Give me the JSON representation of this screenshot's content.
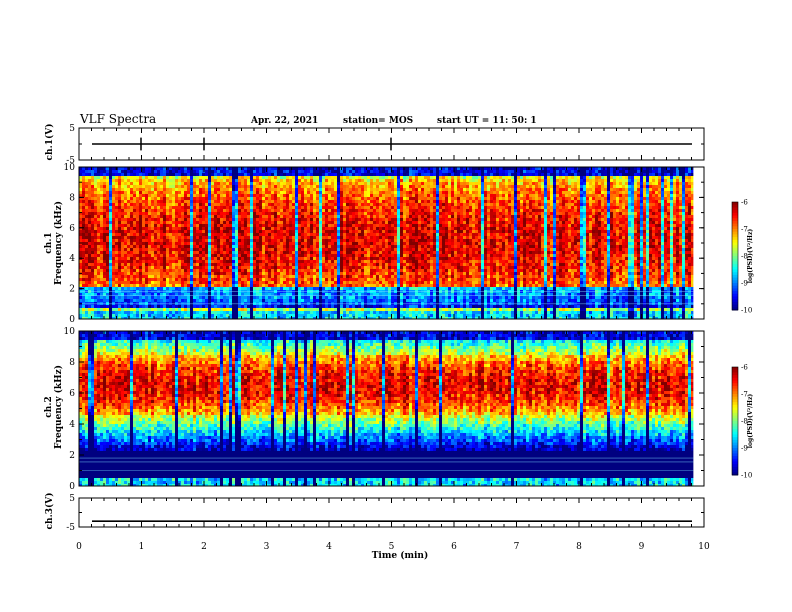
{
  "header": {
    "title": "VLF Spectra",
    "date": "Apr. 22, 2021",
    "station": "station= MOS",
    "start": "start  UT =   11: 50: 1"
  },
  "chart_data": [
    {
      "type": "line",
      "name": "ch1-waveform",
      "ylabel": "ch.1(V)",
      "ylim": [
        -5,
        5
      ],
      "yticks": [
        "5",
        "-5"
      ],
      "series": [
        {
          "values_level": 0
        }
      ],
      "xlim": [
        0,
        10
      ]
    },
    {
      "type": "heatmap",
      "name": "ch1-spectrogram",
      "ylabel": "ch.1\nFrequency (kHz)",
      "ylabel_top": "ch.1",
      "ylabel_bottom": "Frequency (kHz)",
      "ylim": [
        0,
        10
      ],
      "yticks": [
        "0",
        "2",
        "4",
        "6",
        "8",
        "10"
      ],
      "xlim": [
        0,
        9.83
      ],
      "colorbar": {
        "label": "log(PSD)(V²/Hz)",
        "ticks": [
          "-6",
          "-7",
          "-8",
          "-9",
          "-10"
        ],
        "range": [
          -10,
          -6
        ]
      },
      "features": {
        "intense_band_khz": [
          1,
          9.3
        ],
        "gap_band_khz": [
          0.8,
          2.2
        ]
      }
    },
    {
      "type": "heatmap",
      "name": "ch2-spectrogram",
      "ylabel": "ch.2\nFrequency (kHz)",
      "ylabel_top": "ch.2",
      "ylabel_bottom": "Frequency (kHz)",
      "ylim": [
        0,
        10
      ],
      "yticks": [
        "0",
        "2",
        "4",
        "6",
        "8",
        "10"
      ],
      "xlim": [
        0,
        9.83
      ],
      "colorbar": {
        "label": "log(PSD)(V²/Hz)",
        "ticks": [
          "-6",
          "-7",
          "-8",
          "-9",
          "-10"
        ],
        "range": [
          -10,
          -6
        ]
      },
      "features": {
        "intense_band_khz": [
          4.5,
          8.5
        ],
        "gap_band_khz": [
          0.8,
          2.2
        ]
      }
    },
    {
      "type": "line",
      "name": "ch3-waveform",
      "ylabel": "ch.3(V)",
      "ylim": [
        -5,
        5
      ],
      "yticks": [
        "5",
        "-5"
      ],
      "series": [
        {
          "values_level": -3
        }
      ],
      "xlim": [
        0,
        10
      ]
    }
  ],
  "xaxis": {
    "label": "Time  (min)",
    "ticks": [
      "0",
      "1",
      "2",
      "3",
      "4",
      "5",
      "6",
      "7",
      "8",
      "9",
      "10"
    ],
    "range": [
      0,
      10
    ]
  }
}
